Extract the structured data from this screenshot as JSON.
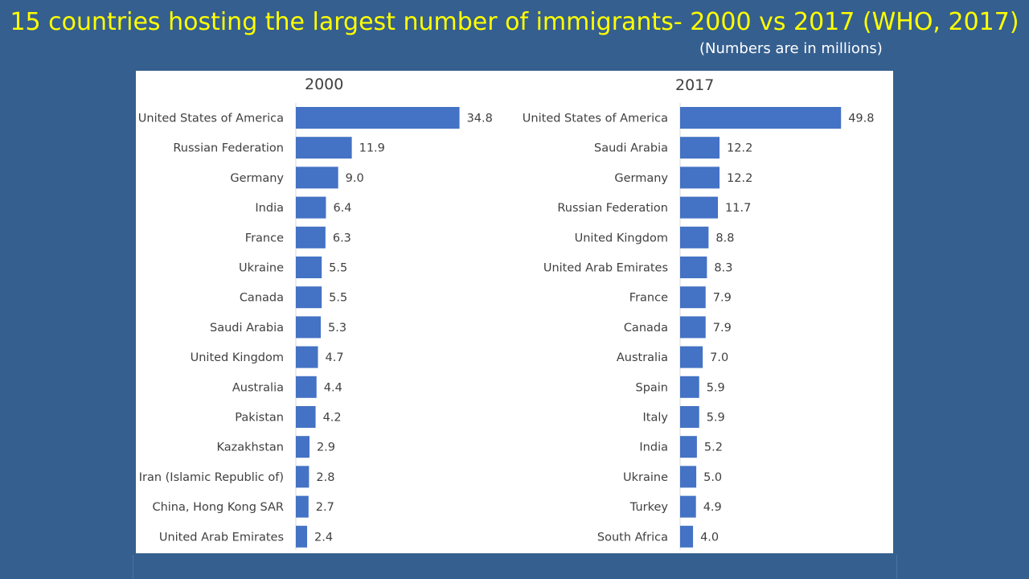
{
  "slide": {
    "title": "15 countries hosting the largest number of immigrants- 2000 vs 2017 (WHO, 2017)",
    "subtitle": "(Numbers are in millions)",
    "background_color": "#355f8f",
    "title_color": "#ffff00"
  },
  "chart_data": [
    {
      "type": "bar",
      "orientation": "horizontal",
      "title": "2000",
      "bar_color": "#4472c4",
      "xlim": [
        0,
        50
      ],
      "grid": false,
      "categories": [
        "United States of America",
        "Russian Federation",
        "Germany",
        "India",
        "France",
        "Ukraine",
        "Canada",
        "Saudi Arabia",
        "United Kingdom",
        "Australia",
        "Pakistan",
        "Kazakhstan",
        "Iran (Islamic Republic of)",
        "China, Hong Kong SAR",
        "United Arab Emirates"
      ],
      "values": [
        34.8,
        11.9,
        9.0,
        6.4,
        6.3,
        5.5,
        5.5,
        5.3,
        4.7,
        4.4,
        4.2,
        2.9,
        2.8,
        2.7,
        2.4
      ],
      "value_labels": [
        "34.8",
        "11.9",
        "9.0",
        "6.4",
        "6.3",
        "5.5",
        "5.5",
        "5.3",
        "4.7",
        "4.4",
        "4.2",
        "2.9",
        "2.8",
        "2.7",
        "2.4"
      ]
    },
    {
      "type": "bar",
      "orientation": "horizontal",
      "title": "2017",
      "bar_color": "#4472c4",
      "xlim": [
        0,
        50
      ],
      "grid": false,
      "categories": [
        "United States of America",
        "Saudi Arabia",
        "Germany",
        "Russian Federation",
        "United Kingdom",
        "United Arab Emirates",
        "France",
        "Canada",
        "Australia",
        "Spain",
        "Italy",
        "India",
        "Ukraine",
        "Turkey",
        "South Africa"
      ],
      "values": [
        49.8,
        12.2,
        12.2,
        11.7,
        8.8,
        8.3,
        7.9,
        7.9,
        7.0,
        5.9,
        5.9,
        5.2,
        5.0,
        4.9,
        4.0
      ],
      "value_labels": [
        "49.8",
        "12.2",
        "12.2",
        "11.7",
        "8.8",
        "8.3",
        "7.9",
        "7.9",
        "7.0",
        "5.9",
        "5.9",
        "5.2",
        "5.0",
        "4.9",
        "4.0"
      ]
    }
  ]
}
